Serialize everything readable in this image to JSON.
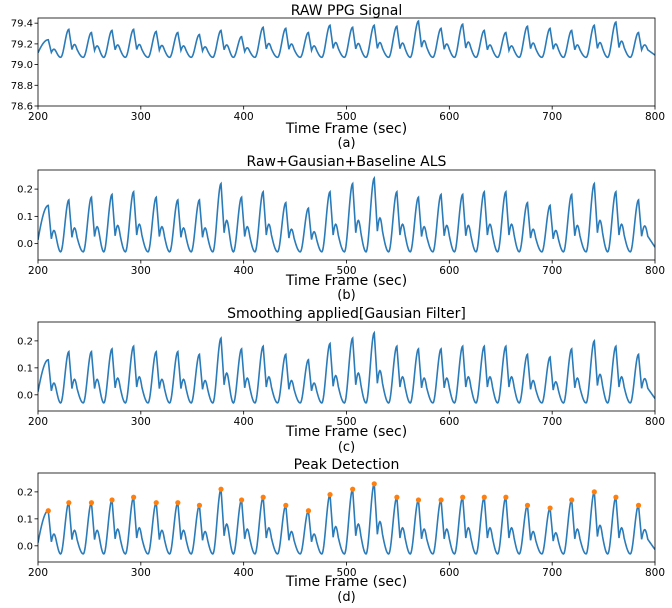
{
  "chart_data": [
    {
      "type": "line",
      "title": "RAW PPG Signal",
      "xlabel": "Time Frame (sec)",
      "caption": "(a)",
      "xlim": [
        200,
        800
      ],
      "ylim": [
        78.6,
        79.45
      ],
      "xticks": [
        200,
        300,
        400,
        500,
        600,
        700,
        800
      ],
      "yticks": [
        78.6,
        78.8,
        79.0,
        79.2,
        79.4
      ],
      "ytick_labels": [
        "78.6",
        "78.8",
        "79.0",
        "79.2",
        "79.4"
      ],
      "color": "#2b7bb9",
      "peaks": [
        {
          "x": 210,
          "y": 79.24
        },
        {
          "x": 230,
          "y": 79.34
        },
        {
          "x": 252,
          "y": 79.31
        },
        {
          "x": 272,
          "y": 79.33
        },
        {
          "x": 293,
          "y": 79.34
        },
        {
          "x": 315,
          "y": 79.32
        },
        {
          "x": 336,
          "y": 79.31
        },
        {
          "x": 357,
          "y": 79.29
        },
        {
          "x": 378,
          "y": 79.33
        },
        {
          "x": 398,
          "y": 79.27
        },
        {
          "x": 419,
          "y": 79.36
        },
        {
          "x": 441,
          "y": 79.35
        },
        {
          "x": 463,
          "y": 79.31
        },
        {
          "x": 484,
          "y": 79.38
        },
        {
          "x": 506,
          "y": 79.36
        },
        {
          "x": 527,
          "y": 79.38
        },
        {
          "x": 549,
          "y": 79.37
        },
        {
          "x": 570,
          "y": 79.42
        },
        {
          "x": 592,
          "y": 79.35
        },
        {
          "x": 613,
          "y": 79.39
        },
        {
          "x": 634,
          "y": 79.33
        },
        {
          "x": 655,
          "y": 79.31
        },
        {
          "x": 676,
          "y": 79.37
        },
        {
          "x": 698,
          "y": 79.35
        },
        {
          "x": 719,
          "y": 79.33
        },
        {
          "x": 741,
          "y": 79.38
        },
        {
          "x": 762,
          "y": 79.41
        },
        {
          "x": 784,
          "y": 79.31
        }
      ],
      "trough_level": 79.07
    },
    {
      "type": "line",
      "title": "Raw+Gausian+Baseline ALS",
      "xlabel": "Time Frame (sec)",
      "caption": "(b)",
      "xlim": [
        200,
        800
      ],
      "ylim": [
        -0.06,
        0.27
      ],
      "xticks": [
        200,
        300,
        400,
        500,
        600,
        700,
        800
      ],
      "yticks": [
        0.0,
        0.1,
        0.2
      ],
      "ytick_labels": [
        "0.0",
        "0.1",
        "0.2"
      ],
      "color": "#2b7bb9",
      "peaks": [
        {
          "x": 210,
          "y": 0.14
        },
        {
          "x": 230,
          "y": 0.16
        },
        {
          "x": 252,
          "y": 0.17
        },
        {
          "x": 272,
          "y": 0.18
        },
        {
          "x": 293,
          "y": 0.19
        },
        {
          "x": 315,
          "y": 0.17
        },
        {
          "x": 336,
          "y": 0.16
        },
        {
          "x": 357,
          "y": 0.16
        },
        {
          "x": 378,
          "y": 0.22
        },
        {
          "x": 398,
          "y": 0.17
        },
        {
          "x": 419,
          "y": 0.19
        },
        {
          "x": 441,
          "y": 0.15
        },
        {
          "x": 463,
          "y": 0.13
        },
        {
          "x": 484,
          "y": 0.19
        },
        {
          "x": 506,
          "y": 0.22
        },
        {
          "x": 527,
          "y": 0.24
        },
        {
          "x": 549,
          "y": 0.19
        },
        {
          "x": 570,
          "y": 0.17
        },
        {
          "x": 592,
          "y": 0.18
        },
        {
          "x": 613,
          "y": 0.18
        },
        {
          "x": 634,
          "y": 0.19
        },
        {
          "x": 655,
          "y": 0.19
        },
        {
          "x": 676,
          "y": 0.15
        },
        {
          "x": 698,
          "y": 0.14
        },
        {
          "x": 719,
          "y": 0.18
        },
        {
          "x": 741,
          "y": 0.22
        },
        {
          "x": 762,
          "y": 0.19
        },
        {
          "x": 784,
          "y": 0.16
        }
      ],
      "trough_level": -0.03
    },
    {
      "type": "line",
      "title": "Smoothing applied[Gausian Filter]",
      "xlabel": "Time Frame (sec)",
      "caption": "(c)",
      "xlim": [
        200,
        800
      ],
      "ylim": [
        -0.06,
        0.27
      ],
      "xticks": [
        200,
        300,
        400,
        500,
        600,
        700,
        800
      ],
      "yticks": [
        0.0,
        0.1,
        0.2
      ],
      "ytick_labels": [
        "0.0",
        "0.1",
        "0.2"
      ],
      "color": "#2b7bb9",
      "peaks": [
        {
          "x": 210,
          "y": 0.13
        },
        {
          "x": 230,
          "y": 0.16
        },
        {
          "x": 252,
          "y": 0.16
        },
        {
          "x": 272,
          "y": 0.17
        },
        {
          "x": 293,
          "y": 0.18
        },
        {
          "x": 315,
          "y": 0.16
        },
        {
          "x": 336,
          "y": 0.16
        },
        {
          "x": 357,
          "y": 0.15
        },
        {
          "x": 378,
          "y": 0.21
        },
        {
          "x": 398,
          "y": 0.17
        },
        {
          "x": 419,
          "y": 0.18
        },
        {
          "x": 441,
          "y": 0.15
        },
        {
          "x": 463,
          "y": 0.13
        },
        {
          "x": 484,
          "y": 0.19
        },
        {
          "x": 506,
          "y": 0.21
        },
        {
          "x": 527,
          "y": 0.23
        },
        {
          "x": 549,
          "y": 0.18
        },
        {
          "x": 570,
          "y": 0.17
        },
        {
          "x": 592,
          "y": 0.17
        },
        {
          "x": 613,
          "y": 0.18
        },
        {
          "x": 634,
          "y": 0.18
        },
        {
          "x": 655,
          "y": 0.18
        },
        {
          "x": 676,
          "y": 0.15
        },
        {
          "x": 698,
          "y": 0.14
        },
        {
          "x": 719,
          "y": 0.17
        },
        {
          "x": 741,
          "y": 0.2
        },
        {
          "x": 762,
          "y": 0.18
        },
        {
          "x": 784,
          "y": 0.15
        }
      ],
      "trough_level": -0.03
    },
    {
      "type": "line",
      "title": "Peak Detection",
      "xlabel": "Time Frame (sec)",
      "caption": "(d)",
      "xlim": [
        200,
        800
      ],
      "ylim": [
        -0.06,
        0.27
      ],
      "xticks": [
        200,
        300,
        400,
        500,
        600,
        700,
        800
      ],
      "yticks": [
        0.0,
        0.1,
        0.2
      ],
      "ytick_labels": [
        "0.0",
        "0.1",
        "0.2"
      ],
      "color": "#2b7bb9",
      "marker_color": "#ff7f0e",
      "show_peak_markers": true,
      "peaks": [
        {
          "x": 210,
          "y": 0.13
        },
        {
          "x": 230,
          "y": 0.16
        },
        {
          "x": 252,
          "y": 0.16
        },
        {
          "x": 272,
          "y": 0.17
        },
        {
          "x": 293,
          "y": 0.18
        },
        {
          "x": 315,
          "y": 0.16
        },
        {
          "x": 336,
          "y": 0.16
        },
        {
          "x": 357,
          "y": 0.15
        },
        {
          "x": 378,
          "y": 0.21
        },
        {
          "x": 398,
          "y": 0.17
        },
        {
          "x": 419,
          "y": 0.18
        },
        {
          "x": 441,
          "y": 0.15
        },
        {
          "x": 463,
          "y": 0.13
        },
        {
          "x": 484,
          "y": 0.19
        },
        {
          "x": 506,
          "y": 0.21
        },
        {
          "x": 527,
          "y": 0.23
        },
        {
          "x": 549,
          "y": 0.18
        },
        {
          "x": 570,
          "y": 0.17
        },
        {
          "x": 592,
          "y": 0.17
        },
        {
          "x": 613,
          "y": 0.18
        },
        {
          "x": 634,
          "y": 0.18
        },
        {
          "x": 655,
          "y": 0.18
        },
        {
          "x": 676,
          "y": 0.15
        },
        {
          "x": 698,
          "y": 0.14
        },
        {
          "x": 719,
          "y": 0.17
        },
        {
          "x": 741,
          "y": 0.2
        },
        {
          "x": 762,
          "y": 0.18
        },
        {
          "x": 784,
          "y": 0.15
        }
      ],
      "trough_level": -0.03
    }
  ]
}
